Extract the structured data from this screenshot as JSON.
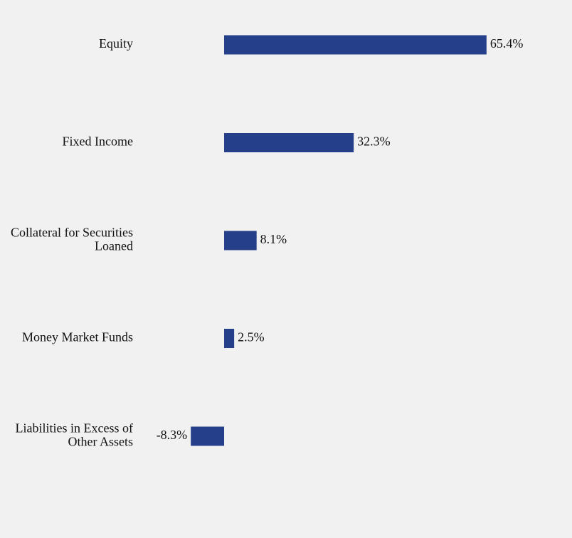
{
  "chart_data": {
    "type": "bar",
    "orientation": "horizontal",
    "categories": [
      "Equity",
      "Fixed Income",
      "Collateral for Securities Loaned",
      "Money Market Funds",
      "Liabilities in Excess of Other Assets"
    ],
    "category_lines": [
      [
        "Equity"
      ],
      [
        "Fixed Income"
      ],
      [
        "Collateral for Securities",
        "Loaned"
      ],
      [
        "Money Market Funds"
      ],
      [
        "Liabilities in Excess of",
        "Other Assets"
      ]
    ],
    "values": [
      65.4,
      32.3,
      8.1,
      2.5,
      -8.3
    ],
    "value_labels": [
      "65.4%",
      "32.3%",
      "8.1%",
      "2.5%",
      "-8.3%"
    ],
    "bar_color": "#253f8a",
    "background_color": "#f1f1f1",
    "grid": false,
    "legend": "none"
  }
}
